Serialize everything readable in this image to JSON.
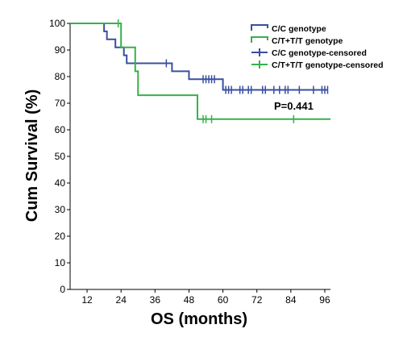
{
  "chart_data": {
    "type": "line",
    "title": "",
    "xlabel": "OS (months)",
    "ylabel": "Cum Survival (%)",
    "xlim": [
      6,
      98
    ],
    "ylim": [
      0,
      100
    ],
    "xticks": [
      12,
      24,
      36,
      48,
      60,
      72,
      84,
      96
    ],
    "yticks": [
      0,
      10,
      20,
      30,
      40,
      50,
      60,
      70,
      80,
      90,
      100
    ],
    "grid": false,
    "legend_position": "top-right",
    "annotation": "P=0.441",
    "colors": {
      "cc": "#3a4fa0",
      "ct": "#36b14a",
      "axis": "#000000"
    },
    "legend": [
      {
        "label": "C/C genotype",
        "color": "#3a4fa0",
        "marker": "step"
      },
      {
        "label": "C/T+T/T genotype",
        "color": "#36b14a",
        "marker": "step"
      },
      {
        "label": "C/C genotype-censored",
        "color": "#3a4fa0",
        "marker": "cross"
      },
      {
        "label": "C/T+T/T genotype-censored",
        "color": "#36b14a",
        "marker": "cross"
      }
    ],
    "series": [
      {
        "name": "C/C genotype",
        "color": "#3a4fa0",
        "steps": [
          [
            6,
            100
          ],
          [
            18,
            97
          ],
          [
            19,
            94
          ],
          [
            22,
            91
          ],
          [
            25,
            88
          ],
          [
            26,
            85
          ],
          [
            42,
            82
          ],
          [
            48,
            79
          ],
          [
            60,
            75
          ],
          [
            97,
            75
          ]
        ],
        "censored": [
          [
            40,
            85
          ],
          [
            53,
            79
          ],
          [
            54,
            79
          ],
          [
            55,
            79
          ],
          [
            56,
            79
          ],
          [
            57,
            79
          ],
          [
            61,
            75
          ],
          [
            62,
            75
          ],
          [
            63,
            75
          ],
          [
            66,
            75
          ],
          [
            67,
            75
          ],
          [
            69,
            75
          ],
          [
            70,
            75
          ],
          [
            74,
            75
          ],
          [
            75,
            75
          ],
          [
            78,
            75
          ],
          [
            80,
            75
          ],
          [
            82,
            75
          ],
          [
            83,
            75
          ],
          [
            87,
            75
          ],
          [
            92,
            75
          ],
          [
            95,
            75
          ],
          [
            96,
            75
          ],
          [
            97,
            75
          ]
        ]
      },
      {
        "name": "C/T+T/T genotype",
        "color": "#36b14a",
        "steps": [
          [
            6,
            100
          ],
          [
            24,
            91
          ],
          [
            29,
            82
          ],
          [
            30,
            73
          ],
          [
            51,
            64
          ],
          [
            98,
            64
          ]
        ],
        "censored": [
          [
            23,
            100
          ],
          [
            53,
            64
          ],
          [
            54,
            64
          ],
          [
            56,
            64
          ],
          [
            85,
            64
          ]
        ]
      }
    ]
  }
}
